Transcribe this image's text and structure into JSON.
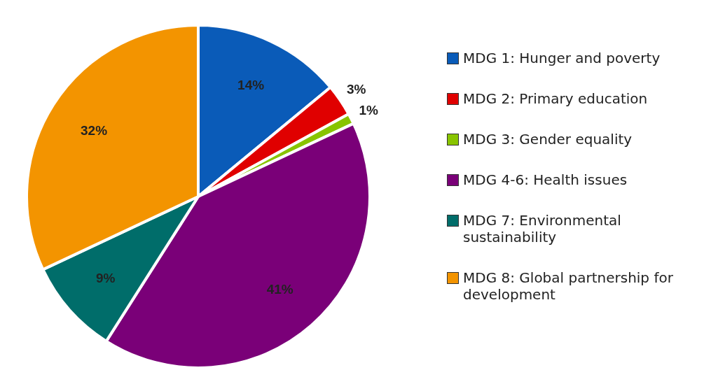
{
  "chart_data": {
    "type": "pie",
    "categories": [
      "MDG 1: Hunger and poverty",
      "MDG 2: Primary education",
      "MDG 3: Gender equality",
      "MDG 4-6: Health issues",
      "MDG 7: Environmental sustainability",
      "MDG 8: Global partnership for development"
    ],
    "values": [
      14,
      3,
      1,
      41,
      9,
      32
    ],
    "value_labels": [
      "14%",
      "3%",
      "1%",
      "41%",
      "9%",
      "32%"
    ],
    "colors": [
      "#0a5bb8",
      "#e00000",
      "#88c400",
      "#7a0078",
      "#006d6a",
      "#f39400"
    ],
    "legend": "right"
  }
}
